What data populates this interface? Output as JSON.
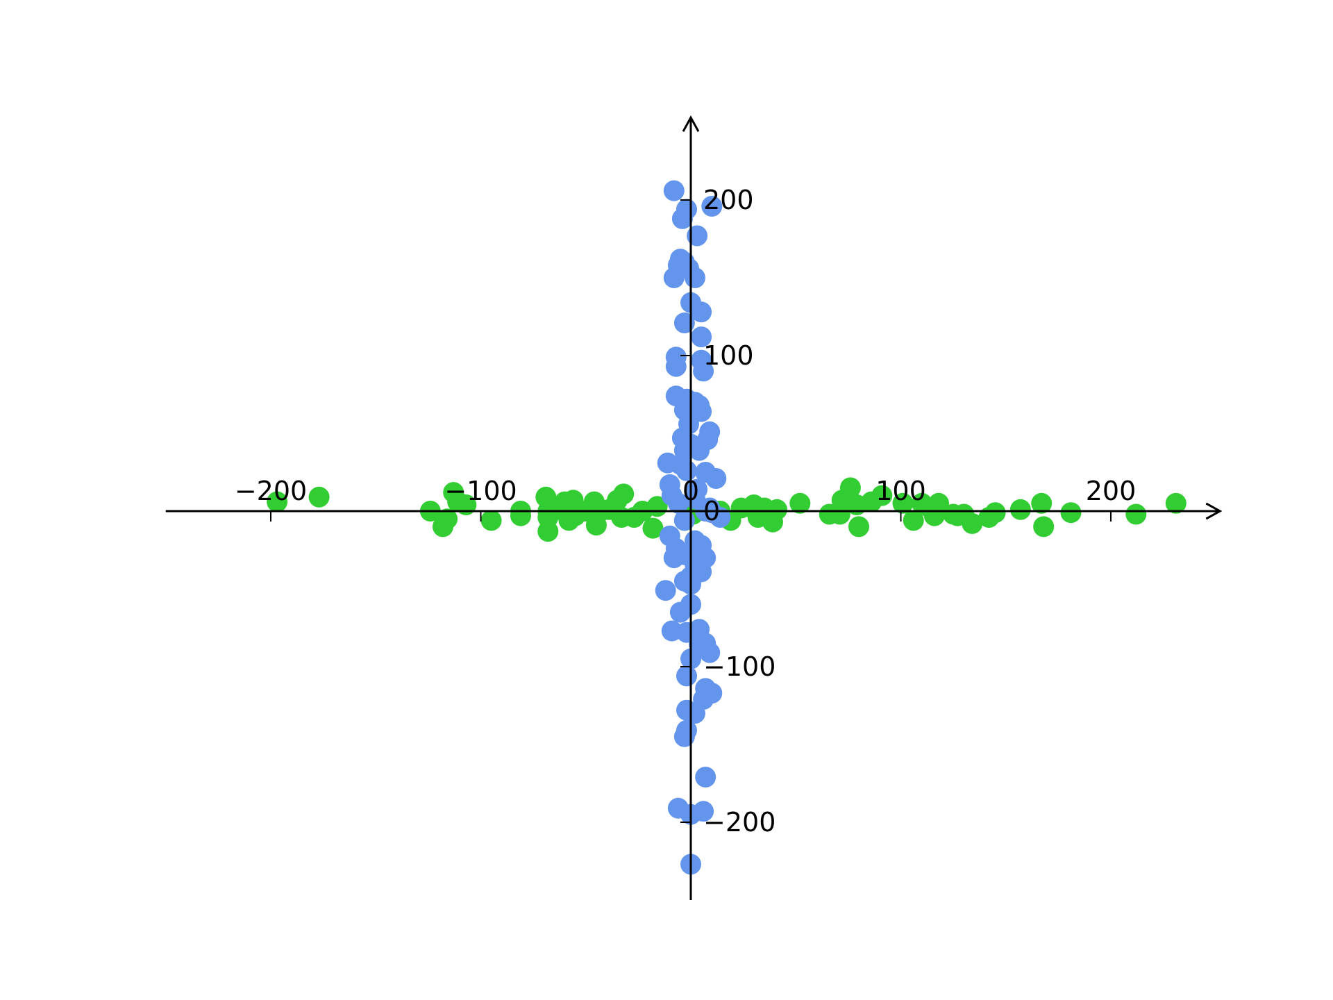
{
  "chart_data": {
    "type": "scatter",
    "title": "",
    "xlabel": "",
    "ylabel": "",
    "xlim": [
      -250,
      252
    ],
    "ylim": [
      -250,
      253
    ],
    "grid": false,
    "legend": "none",
    "x_ticks": [
      {
        "value": -200,
        "label": "−200"
      },
      {
        "value": -100,
        "label": "−100"
      },
      {
        "value": 0,
        "label": "0"
      },
      {
        "value": 100,
        "label": "100"
      },
      {
        "value": 200,
        "label": "200"
      }
    ],
    "y_ticks": [
      {
        "value": -200,
        "label": "−200"
      },
      {
        "value": -100,
        "label": "−100"
      },
      {
        "value": 0,
        "label": "0"
      },
      {
        "value": 100,
        "label": "100"
      },
      {
        "value": 200,
        "label": "200"
      }
    ],
    "series": [
      {
        "color": "#32cd32",
        "points": [
          [
            -197,
            6
          ],
          [
            -177,
            9
          ],
          [
            -124,
            0
          ],
          [
            -118,
            -10
          ],
          [
            -116,
            -5
          ],
          [
            -113,
            12
          ],
          [
            -111,
            6
          ],
          [
            -107,
            4
          ],
          [
            -95,
            -6
          ],
          [
            -81,
            -3
          ],
          [
            -81,
            0
          ],
          [
            -69,
            9
          ],
          [
            -68,
            0
          ],
          [
            -68,
            -4
          ],
          [
            -68,
            -13
          ],
          [
            -64,
            1
          ],
          [
            -60,
            6
          ],
          [
            -58,
            -6
          ],
          [
            -56,
            7
          ],
          [
            -55,
            -3
          ],
          [
            -50,
            0
          ],
          [
            -46,
            6
          ],
          [
            -45,
            -9
          ],
          [
            -43,
            0
          ],
          [
            -39,
            1
          ],
          [
            -35,
            7
          ],
          [
            -33,
            -4
          ],
          [
            -32,
            11
          ],
          [
            -27,
            -4
          ],
          [
            -23,
            0
          ],
          [
            -18,
            -11
          ],
          [
            -16,
            3
          ],
          [
            -3,
            -6
          ],
          [
            1,
            -2
          ],
          [
            10,
            0
          ],
          [
            14,
            0
          ],
          [
            19,
            -6
          ],
          [
            24,
            2
          ],
          [
            30,
            4
          ],
          [
            31,
            0
          ],
          [
            32,
            -4
          ],
          [
            35,
            2
          ],
          [
            37,
            -4
          ],
          [
            39,
            -7
          ],
          [
            41,
            1
          ],
          [
            52,
            5
          ],
          [
            66,
            -2
          ],
          [
            71,
            -2
          ],
          [
            72,
            7
          ],
          [
            76,
            15
          ],
          [
            79,
            4
          ],
          [
            80,
            -10
          ],
          [
            86,
            6
          ],
          [
            91,
            10
          ],
          [
            101,
            5
          ],
          [
            106,
            -6
          ],
          [
            110,
            5
          ],
          [
            114,
            2
          ],
          [
            116,
            -3
          ],
          [
            118,
            5
          ],
          [
            125,
            -2
          ],
          [
            127,
            -3
          ],
          [
            130,
            -2
          ],
          [
            134,
            -8
          ],
          [
            142,
            -4
          ],
          [
            145,
            -1
          ],
          [
            157,
            1
          ],
          [
            167,
            5
          ],
          [
            168,
            -10
          ],
          [
            181,
            -1
          ],
          [
            212,
            -2
          ],
          [
            231,
            5
          ]
        ]
      },
      {
        "color": "#6495ed",
        "points": [
          [
            -8,
            206
          ],
          [
            10,
            196
          ],
          [
            -2,
            194
          ],
          [
            -4,
            188
          ],
          [
            3,
            177
          ],
          [
            -5,
            162
          ],
          [
            -3,
            160
          ],
          [
            -6,
            158
          ],
          [
            -1,
            156
          ],
          [
            -8,
            150
          ],
          [
            2,
            150
          ],
          [
            0,
            134
          ],
          [
            5,
            128
          ],
          [
            -3,
            121
          ],
          [
            5,
            112
          ],
          [
            -7,
            99
          ],
          [
            5,
            97
          ],
          [
            -7,
            93
          ],
          [
            6,
            90
          ],
          [
            -7,
            74
          ],
          [
            -2,
            72
          ],
          [
            2,
            70
          ],
          [
            4,
            68
          ],
          [
            -3,
            65
          ],
          [
            5,
            64
          ],
          [
            -1,
            56
          ],
          [
            9,
            51
          ],
          [
            -4,
            47
          ],
          [
            8,
            46
          ],
          [
            0,
            43
          ],
          [
            -3,
            39
          ],
          [
            4,
            39
          ],
          [
            -5,
            30
          ],
          [
            -2,
            26
          ],
          [
            -11,
            31
          ],
          [
            7,
            25
          ],
          [
            12,
            21
          ],
          [
            -10,
            17
          ],
          [
            3,
            14
          ],
          [
            -9,
            10
          ],
          [
            2,
            8
          ],
          [
            -6,
            5
          ],
          [
            9,
            2
          ],
          [
            7,
            0
          ],
          [
            10,
            -1
          ],
          [
            14,
            -4
          ],
          [
            -3,
            -6
          ],
          [
            -10,
            -16
          ],
          [
            2,
            -19
          ],
          [
            5,
            -22
          ],
          [
            -7,
            -24
          ],
          [
            -3,
            -28
          ],
          [
            4,
            -27
          ],
          [
            -8,
            -30
          ],
          [
            7,
            -30
          ],
          [
            2,
            -34
          ],
          [
            5,
            -39
          ],
          [
            0,
            -42
          ],
          [
            -3,
            -45
          ],
          [
            0,
            -47
          ],
          [
            -12,
            -51
          ],
          [
            0,
            -60
          ],
          [
            -5,
            -65
          ],
          [
            4,
            -76
          ],
          [
            -9,
            -77
          ],
          [
            -2,
            -78
          ],
          [
            4,
            -86
          ],
          [
            7,
            -85
          ],
          [
            9,
            -91
          ],
          [
            0,
            -95
          ],
          [
            -2,
            -106
          ],
          [
            7,
            -114
          ],
          [
            10,
            -117
          ],
          [
            6,
            -121
          ],
          [
            -2,
            -128
          ],
          [
            2,
            -130
          ],
          [
            -2,
            -141
          ],
          [
            -3,
            -145
          ],
          [
            7,
            -171
          ],
          [
            -6,
            -191
          ],
          [
            0,
            -195
          ],
          [
            6,
            -193
          ],
          [
            0,
            -227
          ]
        ]
      }
    ]
  }
}
